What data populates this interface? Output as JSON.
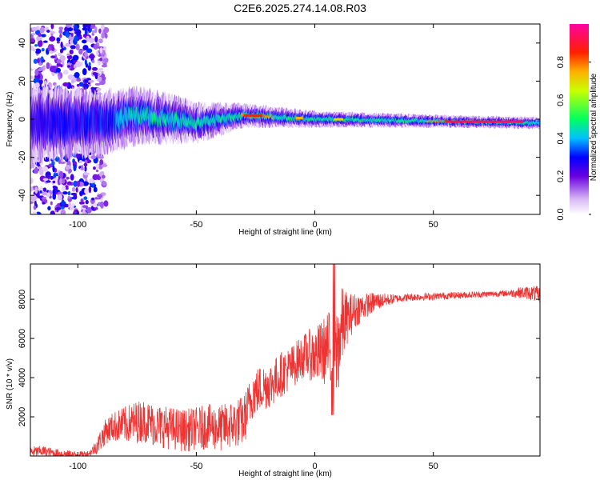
{
  "title": "C2E6.2025.274.14.08.R03",
  "chart_data": [
    {
      "type": "heatmap",
      "panel": "spectrogram",
      "xlabel": "Height of straight line (km)",
      "ylabel": "Frequency (Hz)",
      "xlim": [
        -120,
        95
      ],
      "ylim": [
        -50,
        50
      ],
      "xticks": [
        -100,
        -50,
        0,
        50
      ],
      "yticks": [
        -40,
        -20,
        0,
        20,
        40
      ],
      "colorbar": {
        "label": "Normalized spectral amplitude",
        "range": [
          0.0,
          1.0
        ],
        "ticks": [
          "0.0",
          "0.2",
          "0.4",
          "0.6",
          "0.8"
        ],
        "stops": [
          {
            "v": 0.0,
            "color": "#ffffff"
          },
          {
            "v": 0.08,
            "color": "#d9b8f5"
          },
          {
            "v": 0.2,
            "color": "#6a00e0"
          },
          {
            "v": 0.3,
            "color": "#0000ff"
          },
          {
            "v": 0.4,
            "color": "#00c0ff"
          },
          {
            "v": 0.5,
            "color": "#00ff60"
          },
          {
            "v": 0.65,
            "color": "#c8ff00"
          },
          {
            "v": 0.75,
            "color": "#ffb000"
          },
          {
            "v": 0.85,
            "color": "#ff2000"
          },
          {
            "v": 1.0,
            "color": "#ff00a0"
          }
        ]
      },
      "ridge": {
        "center_hz": [
          [
            -120,
            -2
          ],
          [
            -90,
            -2
          ],
          [
            -75,
            2
          ],
          [
            -60,
            0
          ],
          [
            -50,
            -2
          ],
          [
            -30,
            2
          ],
          [
            0,
            0
          ],
          [
            50,
            -1
          ],
          [
            95,
            -2
          ]
        ],
        "halfwidth_hz": [
          [
            -120,
            10
          ],
          [
            -90,
            8
          ],
          [
            -60,
            6
          ],
          [
            -30,
            3
          ],
          [
            0,
            2
          ],
          [
            60,
            1.5
          ],
          [
            95,
            1.5
          ]
        ],
        "peak_amplitude": [
          [
            -120,
            0.25
          ],
          [
            -90,
            0.35
          ],
          [
            -70,
            0.5
          ],
          [
            -40,
            0.45
          ],
          [
            -28,
            0.85
          ],
          [
            0,
            0.6
          ],
          [
            30,
            0.55
          ],
          [
            60,
            0.9
          ],
          [
            95,
            0.4
          ]
        ]
      }
    },
    {
      "type": "line",
      "panel": "snr",
      "xlabel": "Height of straight line (km)",
      "ylabel": "SNR (10 * v/v)",
      "xlim": [
        -120,
        95
      ],
      "ylim": [
        0,
        9800
      ],
      "xticks": [
        -100,
        -50,
        0,
        50
      ],
      "yticks": [
        2000,
        4000,
        6000,
        8000
      ],
      "line_color": "#ee3333",
      "series": [
        {
          "name": "SNR",
          "x": [
            -120,
            -115,
            -110,
            -105,
            -100,
            -95,
            -92,
            -88,
            -85,
            -80,
            -77,
            -72,
            -68,
            -64,
            -60,
            -55,
            -50,
            -45,
            -40,
            -35,
            -30,
            -26,
            -22,
            -18,
            -14,
            -10,
            -6,
            -3,
            0,
            3,
            6,
            8,
            10,
            12,
            15,
            18,
            22,
            26,
            30,
            35,
            40,
            50,
            60,
            70,
            80,
            88,
            92,
            95
          ],
          "y": [
            200,
            250,
            150,
            100,
            50,
            150,
            500,
            1300,
            1500,
            1600,
            1700,
            1800,
            1600,
            1500,
            1400,
            1300,
            1400,
            1500,
            1400,
            1600,
            1800,
            3200,
            3500,
            3700,
            4200,
            4500,
            5000,
            5200,
            5100,
            5300,
            5500,
            4500,
            5800,
            6800,
            7200,
            7500,
            7700,
            7900,
            7950,
            8050,
            8100,
            8150,
            8200,
            8250,
            8300,
            8350,
            8300,
            8200
          ]
        }
      ],
      "noise_amplitude": [
        [
          -120,
          300
        ],
        [
          -95,
          150
        ],
        [
          -90,
          600
        ],
        [
          -75,
          1100
        ],
        [
          -50,
          1100
        ],
        [
          -30,
          1300
        ],
        [
          -20,
          1200
        ],
        [
          -5,
          1100
        ],
        [
          5,
          1800
        ],
        [
          10,
          2600
        ],
        [
          14,
          1200
        ],
        [
          20,
          700
        ],
        [
          28,
          400
        ],
        [
          35,
          200
        ],
        [
          80,
          150
        ],
        [
          95,
          450
        ]
      ]
    }
  ]
}
